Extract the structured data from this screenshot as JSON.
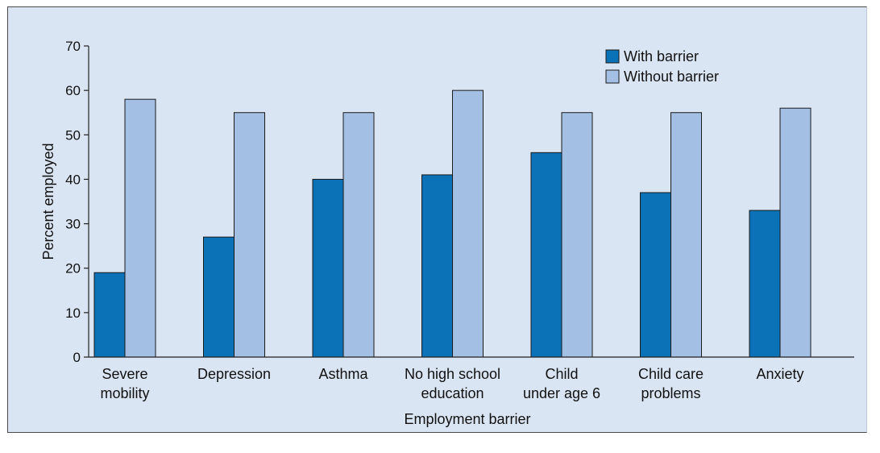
{
  "colors": {
    "background": "#dae5f3",
    "with_barrier": "#0c72b8",
    "without_barrier": "#a3bfe3",
    "axis": "#222222"
  },
  "chart_data": {
    "type": "bar",
    "title": "",
    "xlabel": "Employment barrier",
    "ylabel": "Percent employed",
    "ylim": [
      0,
      70
    ],
    "yticks": [
      0,
      10,
      20,
      30,
      40,
      50,
      60,
      70
    ],
    "grid": false,
    "legend_position": "top-right",
    "categories": [
      [
        "Severe",
        "mobility"
      ],
      [
        "Depression"
      ],
      [
        "Asthma"
      ],
      [
        "No high school",
        "education"
      ],
      [
        "Child",
        "under age 6"
      ],
      [
        "Child care",
        "problems"
      ],
      [
        "Anxiety"
      ]
    ],
    "series": [
      {
        "name": "With barrier",
        "color": "#0c72b8",
        "values": [
          19,
          27,
          40,
          41,
          46,
          37,
          33
        ]
      },
      {
        "name": "Without barrier",
        "color": "#a3bfe3",
        "values": [
          58,
          55,
          55,
          60,
          55,
          55,
          56
        ]
      }
    ]
  }
}
